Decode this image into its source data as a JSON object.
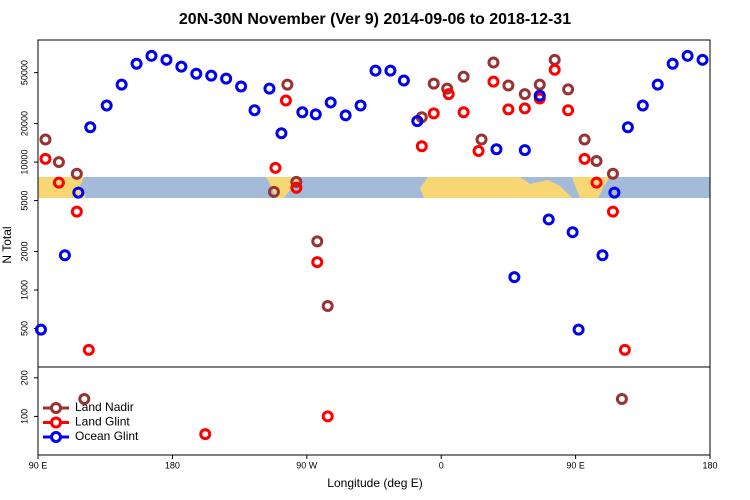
{
  "chart_data": [
    {
      "type": "scatter",
      "title": "20N-30N November (Ver 9)   2014-09-06 to 2018-12-31",
      "ylabel": "N Total",
      "log_y": true,
      "xlim": [
        90,
        540
      ],
      "ylim": [
        250,
        90000
      ],
      "yticks": [
        500,
        1000,
        2000,
        5000,
        10000,
        20000,
        50000
      ],
      "series": [
        {
          "color": "#993333",
          "x": [
            95,
            104,
            116,
            248,
            257,
            263,
            277,
            284,
            347,
            355,
            364,
            375,
            387,
            395,
            405,
            416,
            426,
            436,
            445,
            456,
            464,
            475
          ],
          "values": [
            15000,
            10000,
            8100,
            5850,
            40300,
            7000,
            2400,
            750,
            22400,
            41000,
            37500,
            46500,
            15000,
            60000,
            39700,
            34000,
            40300,
            63000,
            37000,
            15000,
            10200,
            8100
          ]
        },
        {
          "color": "#ff0000",
          "x": [
            95,
            104,
            116,
            124,
            249,
            256,
            263,
            277,
            347,
            355,
            365,
            375,
            385,
            395,
            405,
            416,
            426,
            436,
            445,
            456,
            464,
            475,
            483
          ],
          "values": [
            10600,
            6900,
            4100,
            340,
            9000,
            30300,
            6300,
            1650,
            13300,
            24000,
            34000,
            24500,
            12200,
            42500,
            25800,
            26300,
            31400,
            52700,
            25400,
            10600,
            6900,
            4100,
            340
          ]
        },
        {
          "color": "#0000ee",
          "x": [
            92,
            108,
            117,
            125,
            136,
            146,
            156,
            166,
            176,
            186,
            196,
            206,
            216,
            226,
            235,
            245,
            253,
            267,
            276,
            286,
            296,
            306,
            316,
            326,
            335,
            344,
            397,
            409,
            416,
            426,
            432,
            448,
            452,
            468,
            476,
            485,
            495,
            505,
            515,
            525,
            535
          ],
          "values": [
            490,
            1870,
            5770,
            18700,
            27700,
            40300,
            58700,
            67700,
            63000,
            55700,
            49000,
            47400,
            44900,
            39000,
            25400,
            37500,
            16800,
            24500,
            23600,
            29200,
            23200,
            27700,
            51900,
            51900,
            43400,
            20900,
            12600,
            1260,
            12400,
            33100,
            3560,
            2830,
            490,
            1870,
            5770,
            18700,
            27700,
            40300,
            58700,
            67700,
            63000
          ]
        }
      ]
    },
    {
      "type": "scatter",
      "xlabel": "Longitude (deg E)",
      "xlim": [
        90,
        540
      ],
      "xticks": [
        {
          "value": 90,
          "label": "90 E"
        },
        180,
        {
          "value": 270,
          "label": "90 W"
        },
        {
          "value": 360,
          "label": "0"
        },
        {
          "value": 450,
          "label": "90 E"
        },
        {
          "value": 540,
          "label": "180"
        }
      ],
      "ylim": [
        0,
        228
      ],
      "yticks": [
        100,
        200
      ],
      "legend": "topleft",
      "series": [
        {
          "name": "Land Nadir",
          "color": "#993333",
          "x": [
            121,
            481
          ],
          "values": [
            145,
            145
          ]
        },
        {
          "name": "Land Glint",
          "color": "#ff0000",
          "x": [
            202,
            284
          ],
          "values": [
            54,
            100
          ]
        },
        {
          "name": "Ocean Glint",
          "color": "#0000ee",
          "x": [],
          "values": []
        }
      ]
    }
  ]
}
